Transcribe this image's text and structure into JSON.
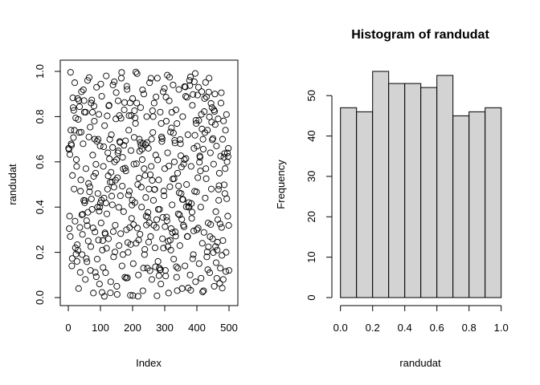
{
  "chart_data": [
    {
      "type": "scatter",
      "title": "",
      "xlabel": "Index",
      "ylabel": "randudat",
      "xlim": [
        0,
        500
      ],
      "ylim": [
        0,
        1
      ],
      "x_ticks": [
        "0",
        "100",
        "200",
        "300",
        "400",
        "500"
      ],
      "y_ticks": [
        "0.0",
        "0.2",
        "0.4",
        "0.6",
        "0.8",
        "1.0"
      ],
      "n_points": 500,
      "marker": "open-circle",
      "points": [
        [
          1,
          0.66
        ],
        [
          4,
          0.36
        ],
        [
          6,
          0.27
        ],
        [
          8,
          0.74
        ],
        [
          11,
          0.14
        ],
        [
          13,
          0.54
        ],
        [
          15,
          0.84
        ],
        [
          18,
          0.48
        ],
        [
          20,
          0.95
        ],
        [
          22,
          0.22
        ],
        [
          25,
          0.61
        ],
        [
          27,
          0.16
        ],
        [
          29,
          0.88
        ],
        [
          32,
          0.04
        ],
        [
          34,
          0.73
        ],
        [
          36,
          0.31
        ],
        [
          39,
          0.52
        ],
        [
          41,
          0.91
        ],
        [
          43,
          0.19
        ],
        [
          46,
          0.68
        ],
        [
          48,
          0.43
        ],
        [
          50,
          0.82
        ],
        [
          53,
          0.08
        ],
        [
          55,
          0.57
        ],
        [
          57,
          0.34
        ],
        [
          60,
          0.96
        ],
        [
          62,
          0.25
        ],
        [
          64,
          0.71
        ],
        [
          67,
          0.49
        ],
        [
          69,
          0.12
        ],
        [
          71,
          0.86
        ],
        [
          74,
          0.39
        ],
        [
          76,
          0.63
        ],
        [
          78,
          0.02
        ],
        [
          81,
          0.78
        ],
        [
          83,
          0.29
        ],
        [
          85,
          0.55
        ],
        [
          88,
          0.93
        ],
        [
          90,
          0.17
        ],
        [
          92,
          0.46
        ],
        [
          95,
          0.81
        ],
        [
          97,
          0.06
        ],
        [
          99,
          0.67
        ],
        [
          102,
          0.33
        ],
        [
          104,
          0.89
        ],
        [
          106,
          0.21
        ],
        [
          109,
          0.58
        ],
        [
          111,
          0.44
        ],
        [
          113,
          0.76
        ],
        [
          116,
          0.11
        ],
        [
          118,
          0.98
        ],
        [
          120,
          0.37
        ],
        [
          123,
          0.64
        ],
        [
          125,
          0.26
        ],
        [
          127,
          0.85
        ],
        [
          130,
          0.51
        ],
        [
          132,
          0.07
        ],
        [
          134,
          0.72
        ],
        [
          137,
          0.41
        ],
        [
          139,
          0.94
        ],
        [
          141,
          0.18
        ],
        [
          144,
          0.6
        ],
        [
          146,
          0.32
        ],
        [
          148,
          0.79
        ],
        [
          151,
          0.05
        ],
        [
          153,
          0.53
        ],
        [
          155,
          0.87
        ],
        [
          158,
          0.23
        ],
        [
          160,
          0.69
        ],
        [
          162,
          0.45
        ],
        [
          165,
          0.97
        ],
        [
          167,
          0.14
        ],
        [
          169,
          0.62
        ],
        [
          172,
          0.38
        ],
        [
          174,
          0.83
        ],
        [
          176,
          0.09
        ],
        [
          179,
          0.56
        ],
        [
          181,
          0.3
        ],
        [
          183,
          0.92
        ],
        [
          186,
          0.2
        ],
        [
          188,
          0.74
        ],
        [
          190,
          0.47
        ],
        [
          193,
          0.01
        ],
        [
          195,
          0.65
        ],
        [
          197,
          0.35
        ],
        [
          200,
          0.88
        ],
        [
          202,
          0.15
        ],
        [
          204,
          0.59
        ],
        [
          207,
          0.42
        ],
        [
          209,
          0.77
        ],
        [
          211,
          0.24
        ],
        [
          214,
          0.99
        ],
        [
          216,
          0.5
        ],
        [
          218,
          0.1
        ],
        [
          221,
          0.7
        ],
        [
          223,
          0.28
        ],
        [
          225,
          0.84
        ],
        [
          228,
          0.4
        ],
        [
          230,
          0.61
        ],
        [
          232,
          0.03
        ],
        [
          235,
          0.9
        ],
        [
          237,
          0.19
        ],
        [
          239,
          0.54
        ],
        [
          242,
          0.36
        ],
        [
          244,
          0.8
        ],
        [
          246,
          0.13
        ],
        [
          249,
          0.66
        ],
        [
          251,
          0.48
        ],
        [
          253,
          0.95
        ],
        [
          256,
          0.27
        ],
        [
          258,
          0.58
        ],
        [
          260,
          0.08
        ],
        [
          263,
          0.73
        ],
        [
          265,
          0.43
        ],
        [
          267,
          0.86
        ],
        [
          270,
          0.22
        ],
        [
          272,
          0.63
        ],
        [
          274,
          0.31
        ],
        [
          277,
          0.97
        ],
        [
          279,
          0.16
        ],
        [
          281,
          0.52
        ],
        [
          284,
          0.39
        ],
        [
          286,
          0.82
        ],
        [
          288,
          0.06
        ],
        [
          291,
          0.69
        ],
        [
          293,
          0.26
        ],
        [
          295,
          0.91
        ],
        [
          298,
          0.45
        ],
        [
          300,
          0.57
        ],
        [
          302,
          0.12
        ],
        [
          305,
          0.78
        ],
        [
          307,
          0.34
        ],
        [
          309,
          0.64
        ],
        [
          312,
          0.02
        ],
        [
          314,
          0.87
        ],
        [
          316,
          0.49
        ],
        [
          319,
          0.21
        ],
        [
          321,
          0.75
        ],
        [
          323,
          0.41
        ],
        [
          326,
          0.94
        ],
        [
          328,
          0.17
        ],
        [
          330,
          0.6
        ],
        [
          333,
          0.29
        ],
        [
          335,
          0.83
        ],
        [
          337,
          0.09
        ],
        [
          340,
          0.55
        ],
        [
          342,
          0.37
        ],
        [
          344,
          0.92
        ],
        [
          347,
          0.23
        ],
        [
          349,
          0.68
        ],
        [
          351,
          0.46
        ],
        [
          354,
          0.04
        ],
        [
          356,
          0.8
        ],
        [
          358,
          0.32
        ],
        [
          361,
          0.61
        ],
        [
          363,
          0.14
        ],
        [
          365,
          0.89
        ],
        [
          368,
          0.5
        ],
        [
          370,
          0.27
        ],
        [
          372,
          0.72
        ],
        [
          375,
          0.42
        ],
        [
          377,
          0.96
        ],
        [
          379,
          0.1
        ],
        [
          382,
          0.58
        ],
        [
          384,
          0.35
        ],
        [
          386,
          0.85
        ],
        [
          389,
          0.19
        ],
        [
          391,
          0.66
        ],
        [
          393,
          0.47
        ],
        [
          396,
          0.07
        ],
        [
          398,
          0.77
        ],
        [
          400,
          0.3
        ],
        [
          403,
          0.53
        ],
        [
          405,
          0.93
        ],
        [
          407,
          0.15
        ],
        [
          410,
          0.62
        ],
        [
          412,
          0.4
        ],
        [
          414,
          0.81
        ],
        [
          417,
          0.24
        ],
        [
          419,
          0.7
        ],
        [
          421,
          0.03
        ],
        [
          424,
          0.88
        ],
        [
          426,
          0.44
        ],
        [
          428,
          0.57
        ],
        [
          431,
          0.18
        ],
        [
          433,
          0.74
        ],
        [
          435,
          0.33
        ],
        [
          438,
          0.97
        ],
        [
          440,
          0.11
        ],
        [
          442,
          0.64
        ],
        [
          445,
          0.48
        ],
        [
          447,
          0.84
        ],
        [
          449,
          0.26
        ],
        [
          452,
          0.59
        ],
        [
          454,
          0.05
        ],
        [
          456,
          0.9
        ],
        [
          459,
          0.38
        ],
        [
          461,
          0.67
        ],
        [
          463,
          0.21
        ],
        [
          466,
          0.79
        ],
        [
          468,
          0.43
        ],
        [
          470,
          0.55
        ],
        [
          473,
          0.13
        ],
        [
          475,
          0.86
        ],
        [
          477,
          0.31
        ],
        [
          480,
          0.7
        ],
        [
          482,
          0.08
        ],
        [
          484,
          0.62
        ],
        [
          487,
          0.46
        ],
        [
          489,
          0.74
        ],
        [
          491,
          0.2
        ],
        [
          494,
          0.6
        ],
        [
          496,
          0.36
        ],
        [
          498,
          0.66
        ],
        [
          500,
          0.12
        ]
      ]
    },
    {
      "type": "bar",
      "title": "Histogram of randudat",
      "xlabel": "randudat",
      "ylabel": "Frequency",
      "bin_edges": [
        0.0,
        0.1,
        0.2,
        0.3,
        0.4,
        0.5,
        0.6,
        0.7,
        0.8,
        0.9,
        1.0
      ],
      "values": [
        47,
        46,
        56,
        53,
        53,
        52,
        55,
        45,
        46,
        47
      ],
      "xlim": [
        0,
        1
      ],
      "ylim": [
        0,
        56
      ],
      "x_ticks": [
        "0.0",
        "0.2",
        "0.4",
        "0.6",
        "0.8",
        "1.0"
      ],
      "y_ticks": [
        "0",
        "10",
        "20",
        "30",
        "40",
        "50"
      ],
      "bar_fill": "#d3d3d3",
      "bar_stroke": "#000000"
    }
  ]
}
